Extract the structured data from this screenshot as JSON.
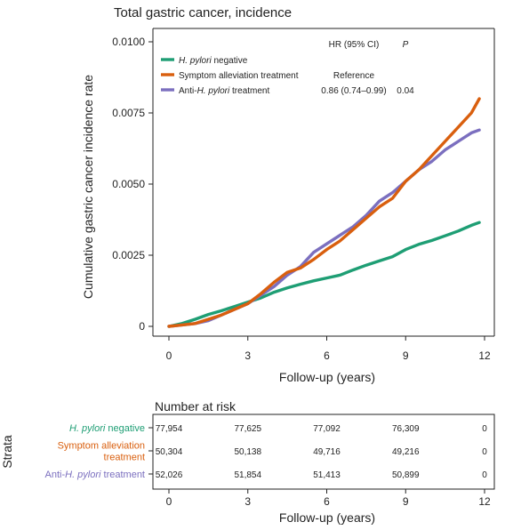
{
  "chart_data": [
    {
      "type": "line",
      "title": "Total gastric cancer, incidence",
      "xlabel": "Follow-up (years)",
      "ylabel": "Cumulative gastric cancer incidence rate",
      "xlim": [
        0,
        12
      ],
      "ylim": [
        0,
        0.01
      ],
      "xticks": [
        "0",
        "3",
        "6",
        "9",
        "12"
      ],
      "yticks": [
        "0",
        "0.0025",
        "0.0050",
        "0.0075",
        "0.0100"
      ],
      "legend_position": "top-left",
      "table_header": {
        "hr": "HR (95% CI)",
        "p": "P"
      },
      "series": [
        {
          "name_parts": [
            {
              "text": "H. pylori",
              "italic": true
            },
            {
              "text": " negative",
              "italic": false
            }
          ],
          "color": "#1e9e74",
          "hr": "",
          "p": "",
          "x": [
            0,
            0.5,
            1,
            1.5,
            2,
            2.5,
            3,
            3.5,
            4,
            4.5,
            5,
            5.5,
            6,
            6.5,
            7,
            7.5,
            8,
            8.5,
            9,
            9.5,
            10,
            10.5,
            11,
            11.5,
            11.8
          ],
          "y": [
            0,
            0.0001,
            0.00025,
            0.00042,
            0.00055,
            0.0007,
            0.00085,
            0.001,
            0.0012,
            0.00135,
            0.00148,
            0.0016,
            0.0017,
            0.0018,
            0.00198,
            0.00215,
            0.0023,
            0.00245,
            0.0027,
            0.00288,
            0.00302,
            0.00318,
            0.00335,
            0.00355,
            0.00365
          ]
        },
        {
          "name_parts": [
            {
              "text": "Symptom alleviation treatment",
              "italic": false
            }
          ],
          "color": "#d95f0e",
          "hr": "Reference",
          "p": "",
          "x": [
            0,
            0.5,
            1,
            1.5,
            2,
            2.5,
            3,
            3.5,
            4,
            4.5,
            5,
            5.5,
            6,
            6.5,
            7,
            7.5,
            8,
            8.5,
            9,
            9.5,
            10,
            10.5,
            11,
            11.5,
            11.8
          ],
          "y": [
            0,
            5e-05,
            0.0001,
            0.00025,
            0.0004,
            0.0006,
            0.0008,
            0.00115,
            0.00155,
            0.0019,
            0.00205,
            0.00235,
            0.0027,
            0.003,
            0.0034,
            0.0038,
            0.0042,
            0.0045,
            0.0051,
            0.0055,
            0.006,
            0.0065,
            0.007,
            0.0075,
            0.008
          ]
        },
        {
          "name_parts": [
            {
              "text": "Anti-",
              "italic": false
            },
            {
              "text": "H. pylori",
              "italic": true
            },
            {
              "text": " treatment",
              "italic": false
            }
          ],
          "color": "#7b6fbf",
          "hr": "0.86 (0.74–0.99)",
          "p": "0.04",
          "x": [
            0,
            0.5,
            1,
            1.5,
            2,
            2.5,
            3,
            3.5,
            4,
            4.5,
            5,
            5.5,
            6,
            6.5,
            7,
            7.5,
            8,
            8.5,
            9,
            9.5,
            10,
            10.5,
            11,
            11.5,
            11.8
          ],
          "y": [
            0,
            5e-05,
            0.0001,
            0.0002,
            0.0004,
            0.0006,
            0.0008,
            0.0011,
            0.0014,
            0.0018,
            0.0021,
            0.0026,
            0.0029,
            0.0032,
            0.0035,
            0.0039,
            0.0044,
            0.0047,
            0.0051,
            0.0055,
            0.0058,
            0.0062,
            0.0065,
            0.0068,
            0.0069
          ]
        }
      ]
    },
    {
      "type": "table",
      "title": "Number at risk",
      "row_label": "Strata",
      "xlabel": "Follow-up (years)",
      "xticks": [
        "0",
        "3",
        "6",
        "9",
        "12"
      ],
      "rows": [
        {
          "label_lines": [
            [
              {
                "text": "H. pylori",
                "italic": true
              },
              {
                "text": " negative",
                "italic": false
              }
            ]
          ],
          "color": "#1e9e74",
          "values": [
            "77,954",
            "77,625",
            "77,092",
            "76,309",
            "0"
          ]
        },
        {
          "label_lines": [
            [
              {
                "text": "Symptom alleviation",
                "italic": false
              }
            ],
            [
              {
                "text": "treatment",
                "italic": false
              }
            ]
          ],
          "color": "#d95f0e",
          "values": [
            "50,304",
            "50,138",
            "49,716",
            "49,216",
            "0"
          ]
        },
        {
          "label_lines": [
            [
              {
                "text": "Anti-",
                "italic": false
              },
              {
                "text": "H. pylori",
                "italic": true
              },
              {
                "text": " treatment",
                "italic": false
              }
            ]
          ],
          "color": "#7b6fbf",
          "values": [
            "52,026",
            "51,854",
            "51,413",
            "50,899",
            "0"
          ]
        }
      ]
    }
  ]
}
